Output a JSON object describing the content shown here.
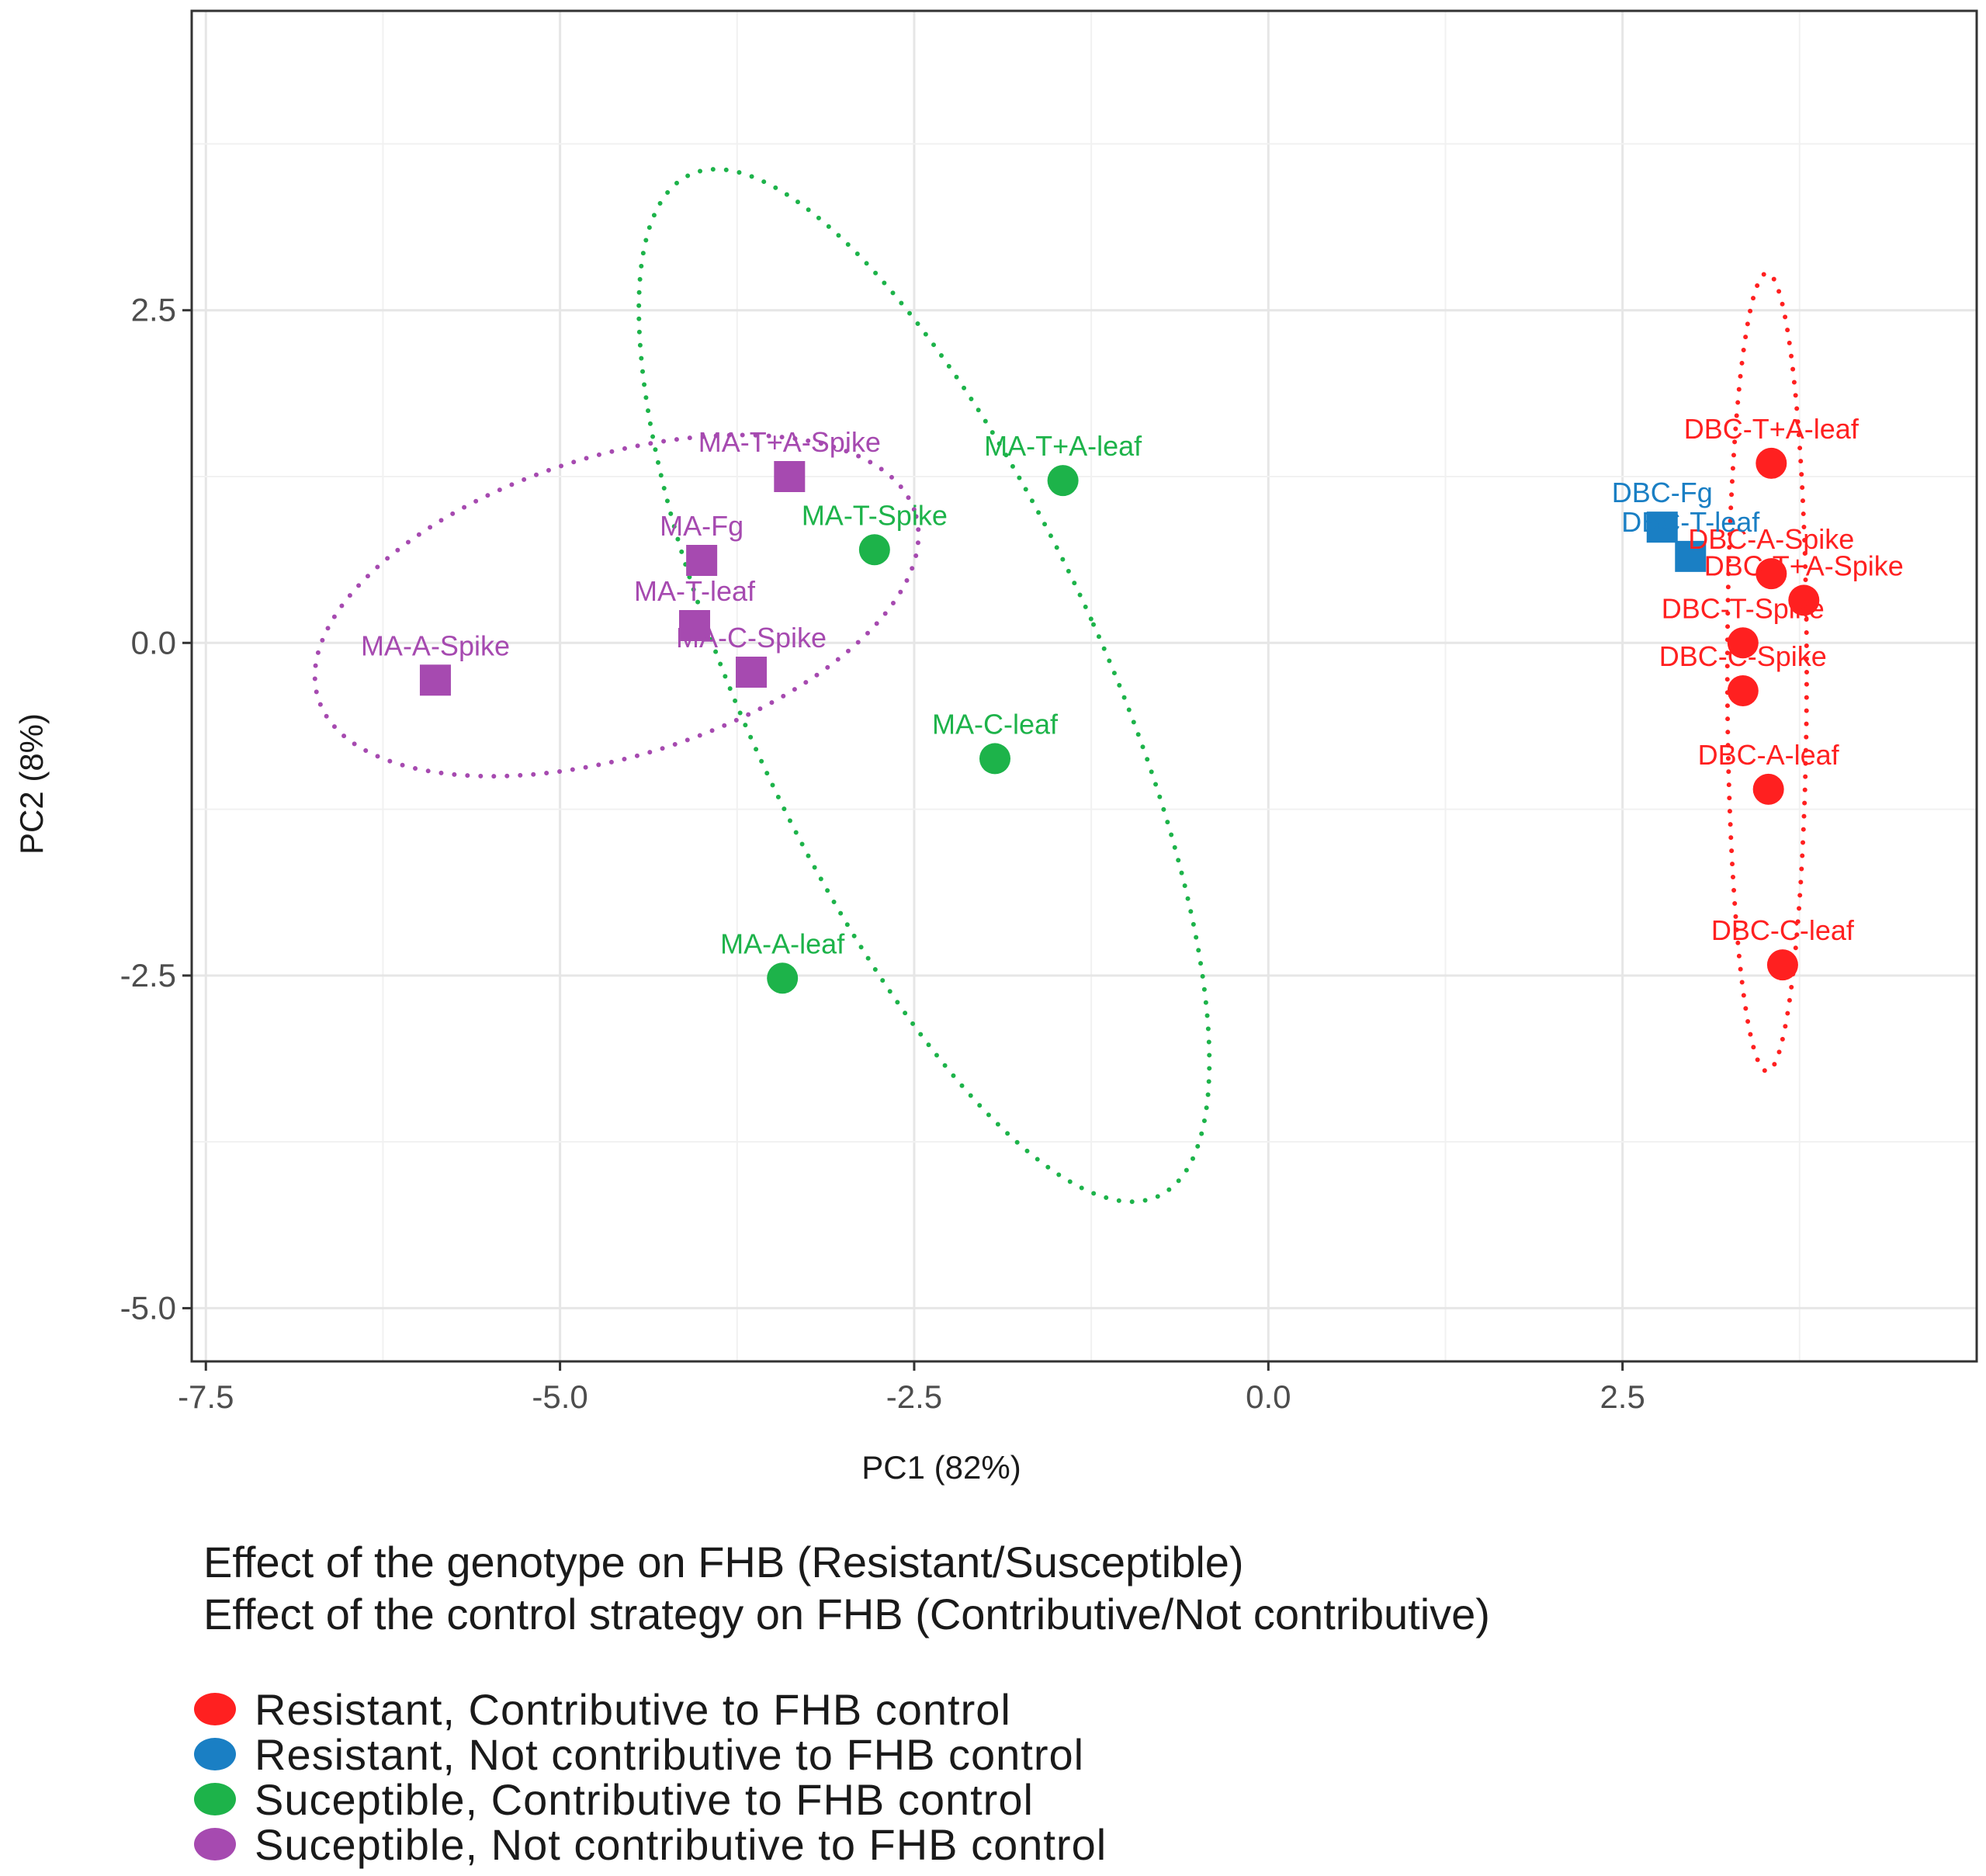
{
  "chart_data": {
    "type": "scatter",
    "xlabel": "PC1 (82%)",
    "ylabel": "PC2 (8%)",
    "xlim": [
      -7.6,
      5.0
    ],
    "ylim": [
      -5.4,
      4.75
    ],
    "xticks": [
      -7.5,
      -5.0,
      -2.5,
      0.0,
      2.5
    ],
    "xtick_labels": [
      "-7.5",
      "-5.0",
      "-2.5",
      "0.0",
      "2.5"
    ],
    "yticks": [
      2.5,
      0.0,
      -2.5,
      -5.0
    ],
    "ytick_labels": [
      "2.5",
      "0.0",
      "-2.5",
      "-5.0"
    ],
    "grid": true,
    "legend_position": "bottom-left",
    "legend_titles": [
      "Effect of the genotype on FHB (Resistant/Susceptible)",
      "Effect of the control strategy on FHB (Contributive/Not contributive)"
    ],
    "series": [
      {
        "name": "Resistant, Contributive to FHB control",
        "color": "#ff2020",
        "shape": "circle",
        "points": [
          {
            "x": 3.55,
            "y": 1.35,
            "label": "DBC-T+A-leaf"
          },
          {
            "x": 3.55,
            "y": 0.52,
            "label": "DBC-A-Spike"
          },
          {
            "x": 3.78,
            "y": 0.32,
            "label": "DBC-T+A-Spike"
          },
          {
            "x": 3.35,
            "y": 0.0,
            "label": "DBC-T-Spike"
          },
          {
            "x": 3.35,
            "y": -0.36,
            "label": "DBC-C-Spike"
          },
          {
            "x": 3.53,
            "y": -1.1,
            "label": "DBC-A-leaf"
          },
          {
            "x": 3.63,
            "y": -2.42,
            "label": "DBC-C-leaf"
          }
        ],
        "ellipse": {
          "cx": 3.52,
          "cy": -0.22,
          "rx": 0.28,
          "ry": 3.0,
          "angle_deg": 0
        }
      },
      {
        "name": "Resistant, Not contributive to FHB control",
        "color": "#1a7fc4",
        "shape": "square",
        "points": [
          {
            "x": 2.78,
            "y": 0.87,
            "label": "DBC-Fg"
          },
          {
            "x": 2.98,
            "y": 0.65,
            "label": "DBC-T-leaf"
          }
        ]
      },
      {
        "name": "Suceptible, Contributive to FHB control",
        "color": "#1db34a",
        "shape": "circle",
        "points": [
          {
            "x": -1.45,
            "y": 1.22,
            "label": "MA-T+A-leaf"
          },
          {
            "x": -2.78,
            "y": 0.7,
            "label": "MA-T-Spike"
          },
          {
            "x": -1.93,
            "y": -0.87,
            "label": "MA-C-leaf"
          },
          {
            "x": -3.43,
            "y": -2.52,
            "label": "MA-A-leaf"
          }
        ],
        "ellipse": {
          "cx": -2.43,
          "cy": -0.32,
          "rx": 1.28,
          "ry": 4.18,
          "angle_deg": 23
        }
      },
      {
        "name": "Suceptible, Not contributive to FHB control",
        "color": "#a64ab0",
        "shape": "square",
        "points": [
          {
            "x": -3.38,
            "y": 1.25,
            "label": "MA-T+A-Spike"
          },
          {
            "x": -4.0,
            "y": 0.62,
            "label": "MA-Fg"
          },
          {
            "x": -4.05,
            "y": 0.13,
            "label": "MA-T-leaf"
          },
          {
            "x": -3.65,
            "y": -0.22,
            "label": "MA-C-Spike"
          },
          {
            "x": -5.88,
            "y": -0.28,
            "label": "MA-A-Spike"
          }
        ],
        "ellipse": {
          "cx": -4.6,
          "cy": 0.28,
          "rx": 2.22,
          "ry": 1.12,
          "angle_deg": 19
        }
      }
    ]
  }
}
